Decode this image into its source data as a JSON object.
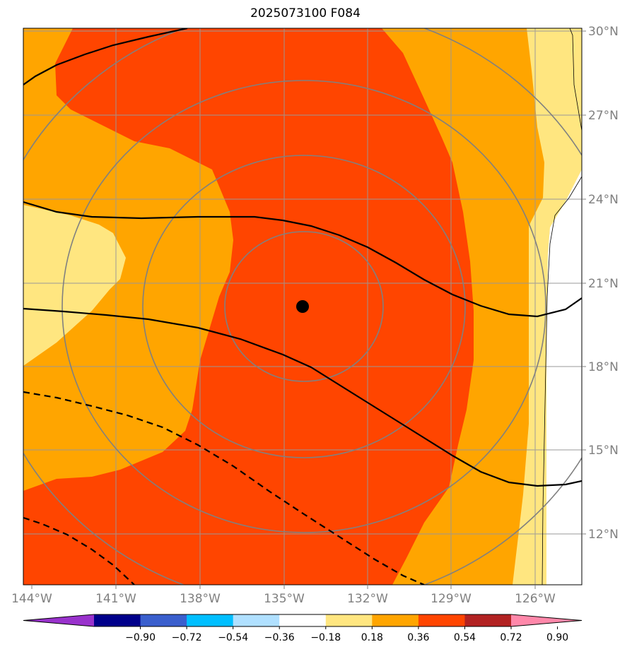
{
  "title": "2025073100 F084",
  "map": {
    "lon_min": -144.0,
    "lon_max": -124.7,
    "lat_min": 10.3,
    "lat_max": 30.2,
    "lat_ticks": [
      {
        "value": 30,
        "label": "30°N"
      },
      {
        "value": 27,
        "label": "27°N"
      },
      {
        "value": 24,
        "label": "24°N"
      },
      {
        "value": 21,
        "label": "21°N"
      },
      {
        "value": 18,
        "label": "18°N"
      },
      {
        "value": 15,
        "label": "15°N"
      },
      {
        "value": 12,
        "label": "12°N"
      }
    ],
    "lon_ticks": [
      {
        "value": -144,
        "label": "144°W"
      },
      {
        "value": -141,
        "label": "141°W"
      },
      {
        "value": -138,
        "label": "138°W"
      },
      {
        "value": -135,
        "label": "135°W"
      },
      {
        "value": -132,
        "label": "132°W"
      },
      {
        "value": -129,
        "label": "129°W"
      },
      {
        "value": -126,
        "label": "126°W"
      }
    ],
    "storm_center": {
      "lon": -134.4,
      "lat": 20.2
    },
    "colors": {
      "fill_018_036": "#ffe680",
      "fill_036_054": "#ffa500",
      "fill_054_072": "#ff4500",
      "grid": "#999999",
      "range_rings": "#808080",
      "contour": "#000000"
    }
  },
  "colorbar": {
    "levels": [
      "−0.90",
      "−0.72",
      "−0.54",
      "−0.36",
      "−0.18",
      "0.18",
      "0.36",
      "0.54",
      "0.72",
      "0.90"
    ],
    "colors": [
      "#9932cc",
      "#00008b",
      "#3a5fcd",
      "#00bfff",
      "#b0e0ff",
      "#ffffff",
      "#ffe680",
      "#ffa500",
      "#ff4500",
      "#b22222",
      "#ff88aa"
    ],
    "extend": "both"
  }
}
